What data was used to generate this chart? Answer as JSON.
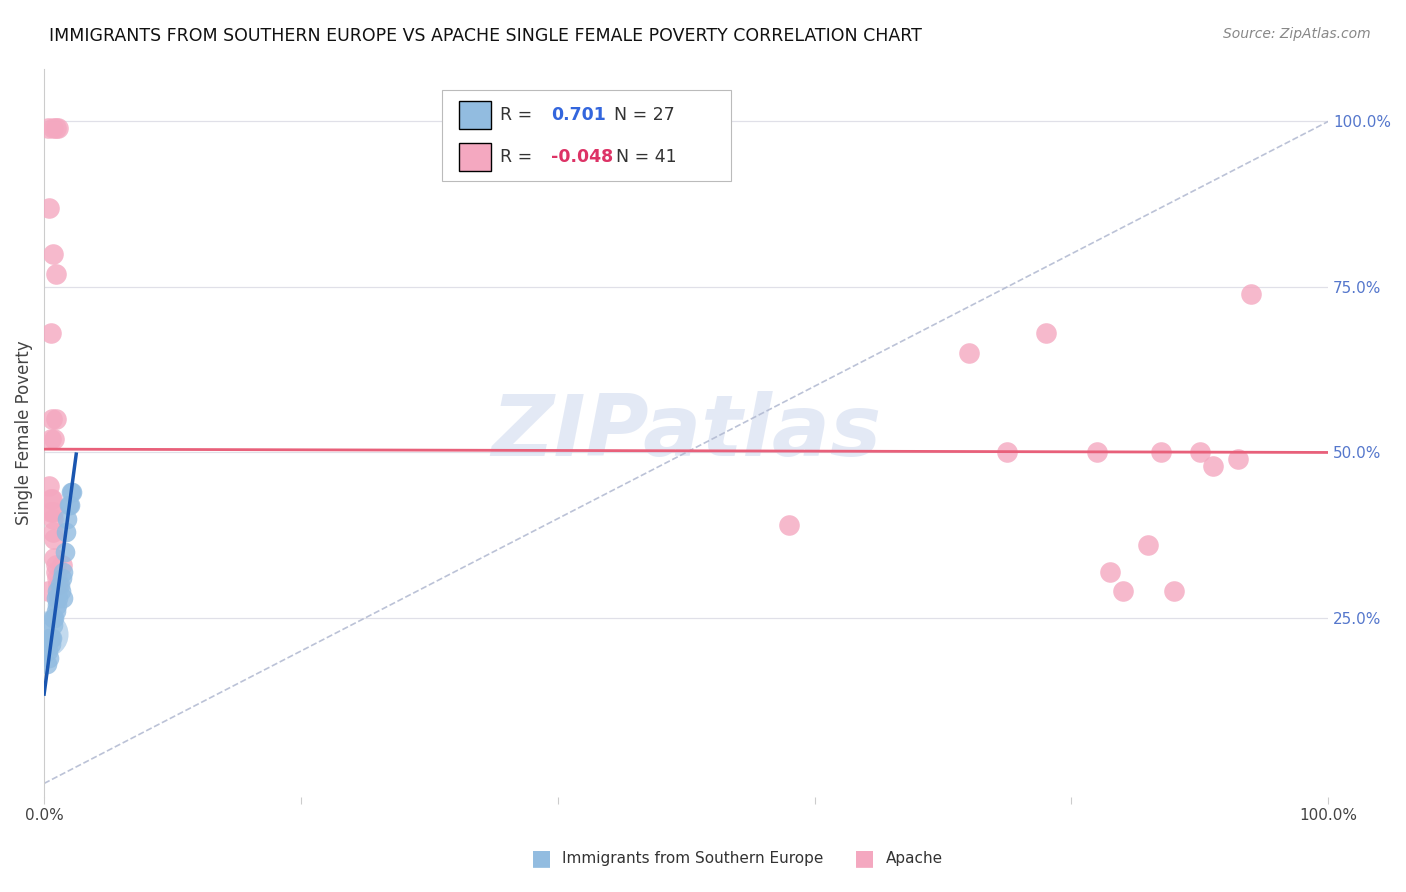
{
  "title": "IMMIGRANTS FROM SOUTHERN EUROPE VS APACHE SINGLE FEMALE POVERTY CORRELATION CHART",
  "source": "Source: ZipAtlas.com",
  "ylabel": "Single Female Poverty",
  "legend_blue_r": "0.701",
  "legend_blue_n": "27",
  "legend_pink_r": "-0.048",
  "legend_pink_n": "41",
  "legend_blue_label": "Immigrants from Southern Europe",
  "legend_pink_label": "Apache",
  "watermark_text": "ZIPatlas",
  "background_color": "#ffffff",
  "blue_color": "#92bce0",
  "pink_color": "#f4a8c0",
  "blue_line_color": "#1a56b0",
  "pink_line_color": "#e8607a",
  "dashed_line_color": "#b0b8d0",
  "grid_color": "#e0e0e8",
  "right_tick_color": "#5577cc",
  "xlim": [
    0.0,
    1.0
  ],
  "ylim": [
    -0.02,
    1.08
  ],
  "blue_points": [
    [
      0.002,
      0.18
    ],
    [
      0.003,
      0.2
    ],
    [
      0.004,
      0.19
    ],
    [
      0.004,
      0.22
    ],
    [
      0.005,
      0.21
    ],
    [
      0.005,
      0.22
    ],
    [
      0.006,
      0.22
    ],
    [
      0.007,
      0.24
    ],
    [
      0.007,
      0.25
    ],
    [
      0.008,
      0.25
    ],
    [
      0.009,
      0.26
    ],
    [
      0.009,
      0.28
    ],
    [
      0.01,
      0.27
    ],
    [
      0.01,
      0.29
    ],
    [
      0.011,
      0.28
    ],
    [
      0.012,
      0.3
    ],
    [
      0.013,
      0.29
    ],
    [
      0.014,
      0.31
    ],
    [
      0.015,
      0.28
    ],
    [
      0.015,
      0.32
    ],
    [
      0.016,
      0.35
    ],
    [
      0.017,
      0.38
    ],
    [
      0.018,
      0.4
    ],
    [
      0.019,
      0.42
    ],
    [
      0.02,
      0.42
    ],
    [
      0.021,
      0.44
    ],
    [
      0.022,
      0.44
    ]
  ],
  "blue_big_point": [
    0.001,
    0.225
  ],
  "pink_points_left": [
    [
      0.003,
      0.99
    ],
    [
      0.007,
      0.99
    ],
    [
      0.009,
      0.99
    ],
    [
      0.011,
      0.99
    ],
    [
      0.004,
      0.87
    ],
    [
      0.007,
      0.8
    ],
    [
      0.009,
      0.77
    ],
    [
      0.005,
      0.68
    ],
    [
      0.009,
      0.55
    ],
    [
      0.006,
      0.55
    ],
    [
      0.005,
      0.52
    ],
    [
      0.008,
      0.52
    ],
    [
      0.004,
      0.45
    ],
    [
      0.005,
      0.43
    ],
    [
      0.006,
      0.43
    ],
    [
      0.005,
      0.41
    ],
    [
      0.007,
      0.41
    ],
    [
      0.007,
      0.4
    ],
    [
      0.007,
      0.38
    ],
    [
      0.008,
      0.37
    ],
    [
      0.008,
      0.34
    ],
    [
      0.009,
      0.33
    ],
    [
      0.009,
      0.32
    ],
    [
      0.01,
      0.31
    ],
    [
      0.011,
      0.3
    ],
    [
      0.003,
      0.29
    ],
    [
      0.014,
      0.33
    ]
  ],
  "pink_points_right": [
    [
      0.58,
      0.39
    ],
    [
      0.72,
      0.65
    ],
    [
      0.75,
      0.5
    ],
    [
      0.78,
      0.68
    ],
    [
      0.82,
      0.5
    ],
    [
      0.83,
      0.32
    ],
    [
      0.84,
      0.29
    ],
    [
      0.86,
      0.36
    ],
    [
      0.87,
      0.5
    ],
    [
      0.88,
      0.29
    ],
    [
      0.9,
      0.5
    ],
    [
      0.91,
      0.48
    ],
    [
      0.93,
      0.49
    ],
    [
      0.94,
      0.74
    ]
  ],
  "pink_intercept": 0.505,
  "pink_slope": -0.005,
  "blue_intercept": 0.135,
  "blue_slope": 14.5
}
